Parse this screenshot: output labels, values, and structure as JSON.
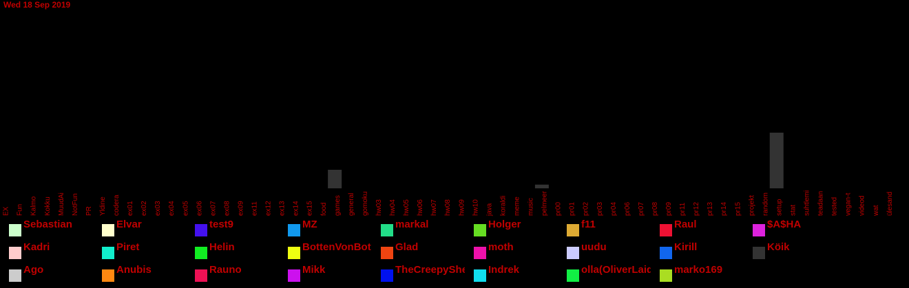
{
  "chart_data": {
    "type": "bar",
    "title": "Wed 18 Sep 2019",
    "xlabel": "",
    "ylabel": "",
    "ylim": [
      0,
      100
    ],
    "grid": false,
    "categories": [
      "EX",
      "Fun",
      "Kalmo",
      "Kokku",
      "MuudAi",
      "NotFun",
      "PR",
      "Yldine",
      "codera",
      "ex01",
      "ex02",
      "ex03",
      "ex04",
      "ex05",
      "ex06",
      "ex07",
      "ex08",
      "ex09",
      "ex11",
      "ex12",
      "ex13",
      "ex14",
      "ex15",
      "food",
      "games",
      "general",
      "gomoku",
      "hw03",
      "hw04",
      "hw05",
      "hw06",
      "hw07",
      "hw08",
      "hw09",
      "hw10",
      "java",
      "koraldi",
      "meme",
      "music",
      "pelmeer",
      "pr00",
      "pr01",
      "pr02",
      "pr03",
      "pr04",
      "pr06",
      "pr07",
      "pr08",
      "pr09",
      "pr11",
      "pr12",
      "pr13",
      "pr14",
      "pr15",
      "projekt",
      "random",
      "setup",
      "stat",
      "suhtlemi",
      "teadaan",
      "tested",
      "vegan-t",
      "videod",
      "wat",
      "ülesand"
    ],
    "series": [
      {
        "name": "Köik",
        "color": "#333333",
        "values": [
          0,
          0,
          0,
          0,
          0,
          0,
          0,
          0,
          0,
          0,
          0,
          0,
          0,
          0,
          0,
          0,
          0,
          0,
          0,
          0,
          0,
          0,
          0,
          10,
          0,
          0,
          0,
          0,
          0,
          0,
          0,
          0,
          0,
          0,
          0,
          0,
          0,
          0,
          2,
          0,
          0,
          0,
          0,
          0,
          0,
          0,
          0,
          0,
          0,
          0,
          0,
          0,
          0,
          0,
          0,
          30,
          0,
          0,
          0,
          0,
          0,
          0,
          0,
          0,
          0
        ]
      }
    ],
    "legend": {
      "placement": "bottom",
      "entries": [
        {
          "name": "Sebastian",
          "color": "#ccffcc"
        },
        {
          "name": "Elvar",
          "color": "#ffffcc"
        },
        {
          "name": "test9",
          "color": "#4411ee"
        },
        {
          "name": "MZ",
          "color": "#1199ee"
        },
        {
          "name": "markal",
          "color": "#22dd88"
        },
        {
          "name": "Holger",
          "color": "#66dd22"
        },
        {
          "name": "f11",
          "color": "#ddaa33"
        },
        {
          "name": "Raul",
          "color": "#ee1133"
        },
        {
          "name": "$A$HA",
          "color": "#dd22dd"
        },
        {
          "name": "Kadri",
          "color": "#ffcccc"
        },
        {
          "name": "Piret",
          "color": "#11eecc"
        },
        {
          "name": "Helin",
          "color": "#11ee22"
        },
        {
          "name": "BottenVonBot",
          "color": "#eeff11"
        },
        {
          "name": "Glad",
          "color": "#ee4411"
        },
        {
          "name": "moth",
          "color": "#ee11aa"
        },
        {
          "name": "uudu",
          "color": "#ccccff"
        },
        {
          "name": "Kirill",
          "color": "#1166ee"
        },
        {
          "name": "Köik",
          "color": "#333333"
        },
        {
          "name": "Ago",
          "color": "#cccccc"
        },
        {
          "name": "Anubis",
          "color": "#ff8811"
        },
        {
          "name": "Rauno",
          "color": "#ee1155"
        },
        {
          "name": "Mikk",
          "color": "#cc11ee"
        },
        {
          "name": "TheCreepySheep",
          "color": "#0011ee"
        },
        {
          "name": "Indrek",
          "color": "#11ddee"
        },
        {
          "name": "olla(OliverLaidla)",
          "color": "#11ee44"
        },
        {
          "name": "marko169",
          "color": "#aadd22"
        }
      ]
    }
  },
  "style": {
    "text_color": "#c00000",
    "background": "#000000"
  }
}
